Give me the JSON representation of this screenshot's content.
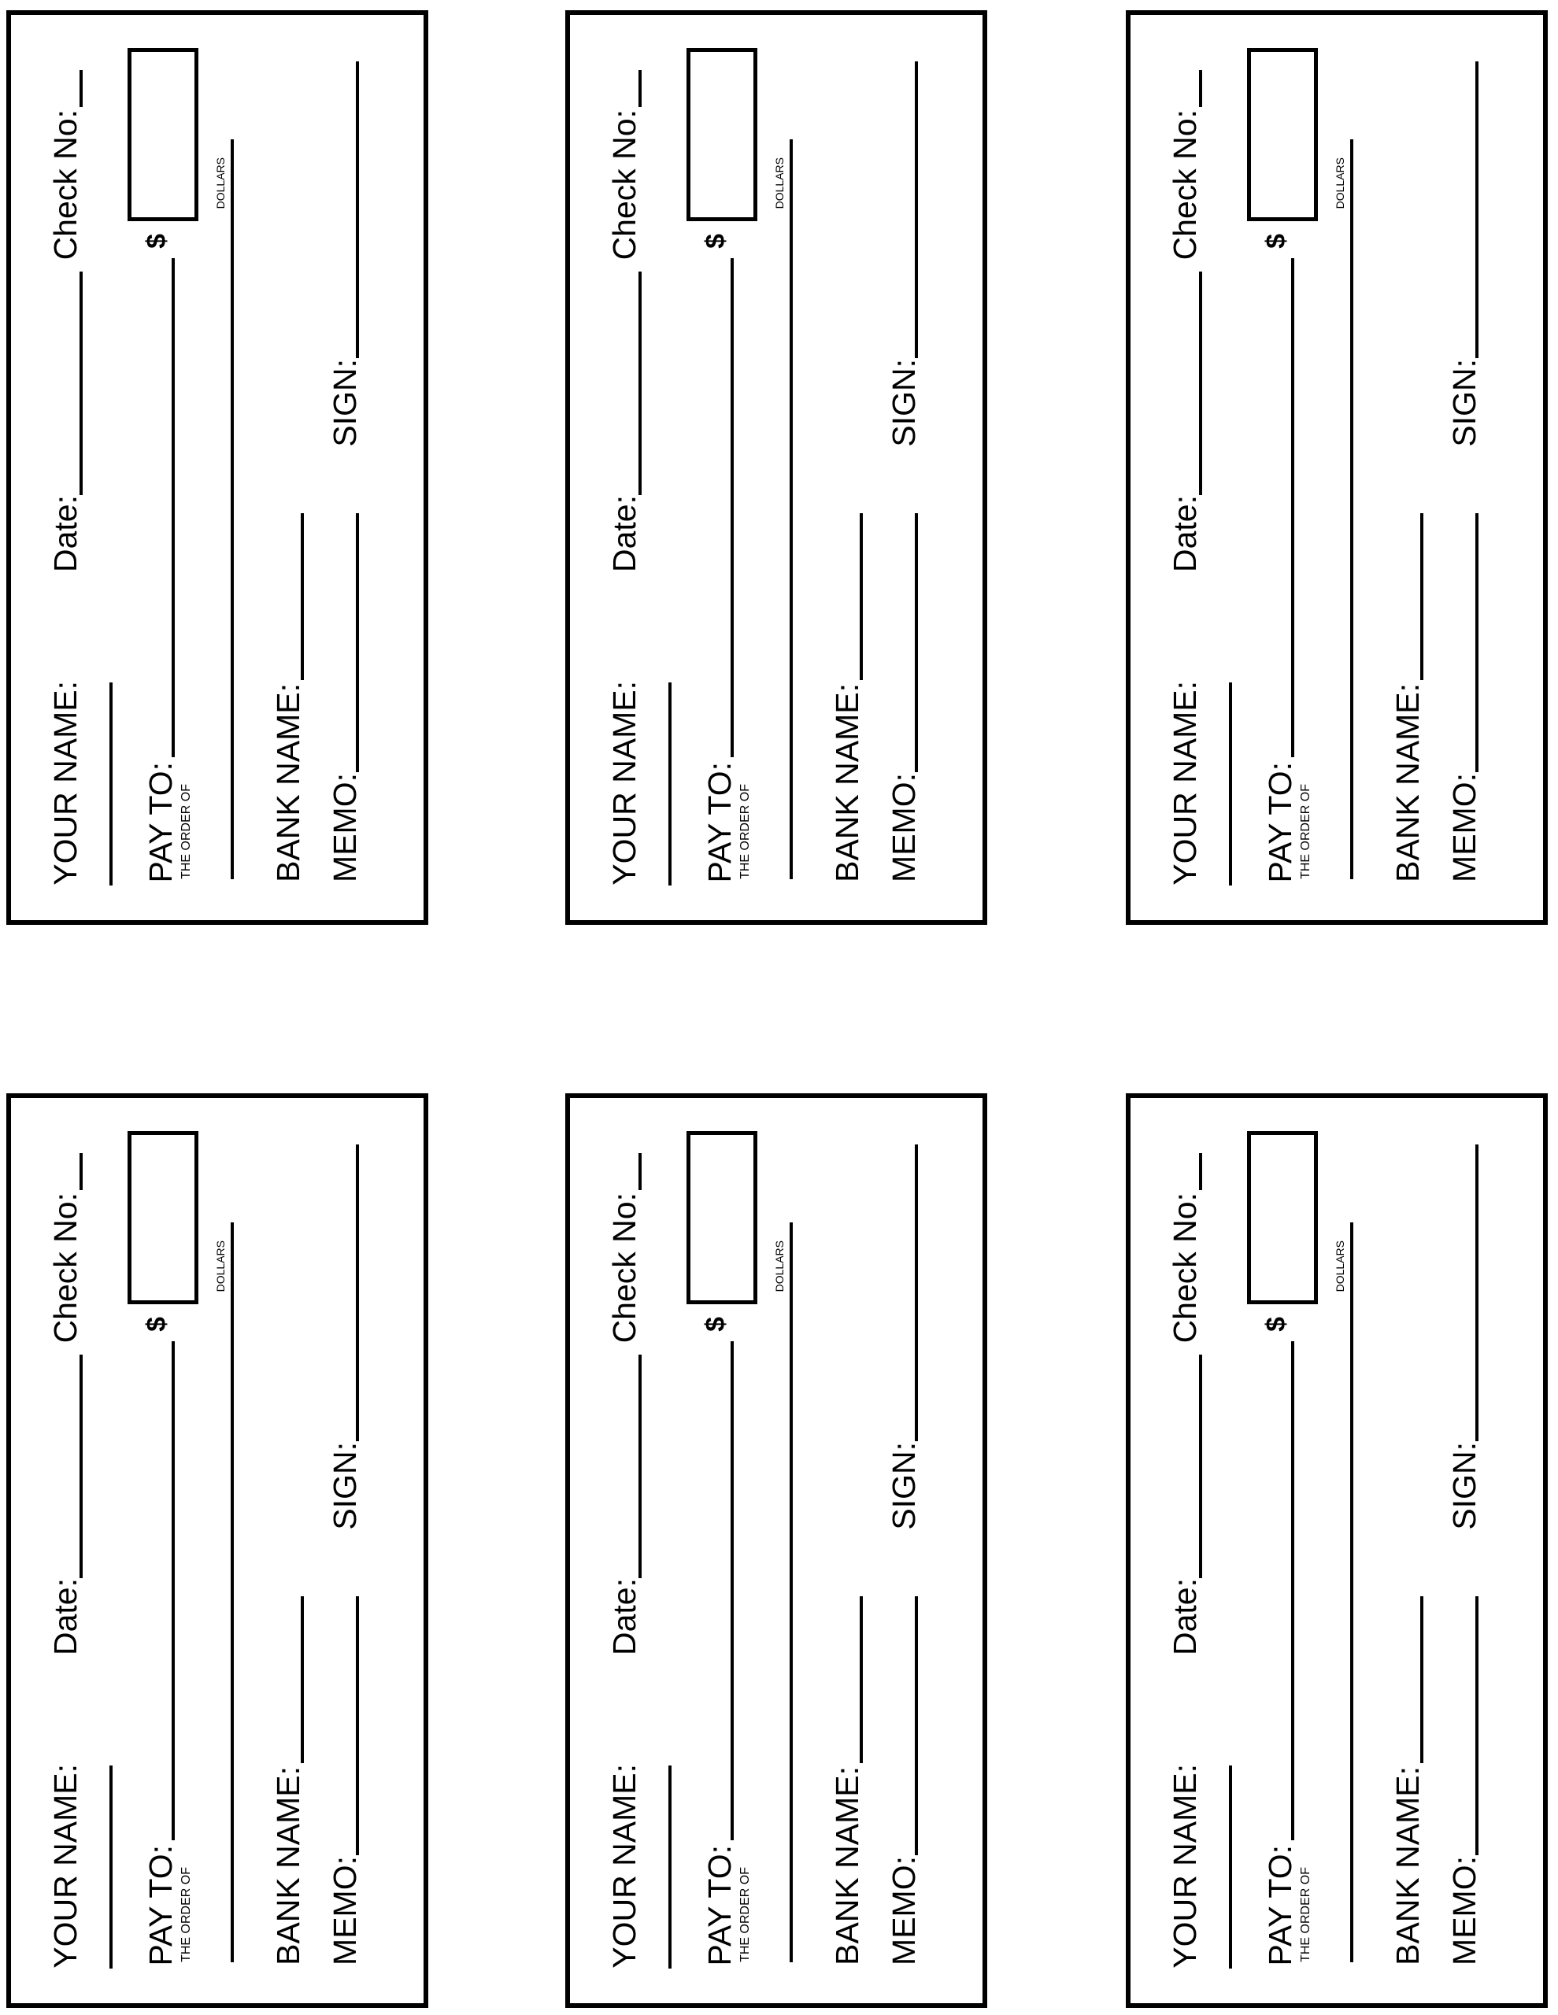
{
  "labels": {
    "your_name": "YOUR NAME:",
    "date": "Date:",
    "check_no": "Check No:",
    "pay_to": "PAY TO:",
    "order_of": "THE ORDER OF",
    "dollar_sign": "$",
    "dollars": "DOLLARS",
    "bank_name": "BANK NAME:",
    "memo": "MEMO:",
    "sign": "SIGN:"
  },
  "checks": [
    {
      "fields": {
        "your_name": "",
        "date": "",
        "check_no": "",
        "pay_to": "",
        "amount": "",
        "dollars": "",
        "bank_name": "",
        "memo": "",
        "sign": ""
      }
    },
    {
      "fields": {
        "your_name": "",
        "date": "",
        "check_no": "",
        "pay_to": "",
        "amount": "",
        "dollars": "",
        "bank_name": "",
        "memo": "",
        "sign": ""
      }
    },
    {
      "fields": {
        "your_name": "",
        "date": "",
        "check_no": "",
        "pay_to": "",
        "amount": "",
        "dollars": "",
        "bank_name": "",
        "memo": "",
        "sign": ""
      }
    },
    {
      "fields": {
        "your_name": "",
        "date": "",
        "check_no": "",
        "pay_to": "",
        "amount": "",
        "dollars": "",
        "bank_name": "",
        "memo": "",
        "sign": ""
      }
    },
    {
      "fields": {
        "your_name": "",
        "date": "",
        "check_no": "",
        "pay_to": "",
        "amount": "",
        "dollars": "",
        "bank_name": "",
        "memo": "",
        "sign": ""
      }
    },
    {
      "fields": {
        "your_name": "",
        "date": "",
        "check_no": "",
        "pay_to": "",
        "amount": "",
        "dollars": "",
        "bank_name": "",
        "memo": "",
        "sign": ""
      }
    }
  ]
}
